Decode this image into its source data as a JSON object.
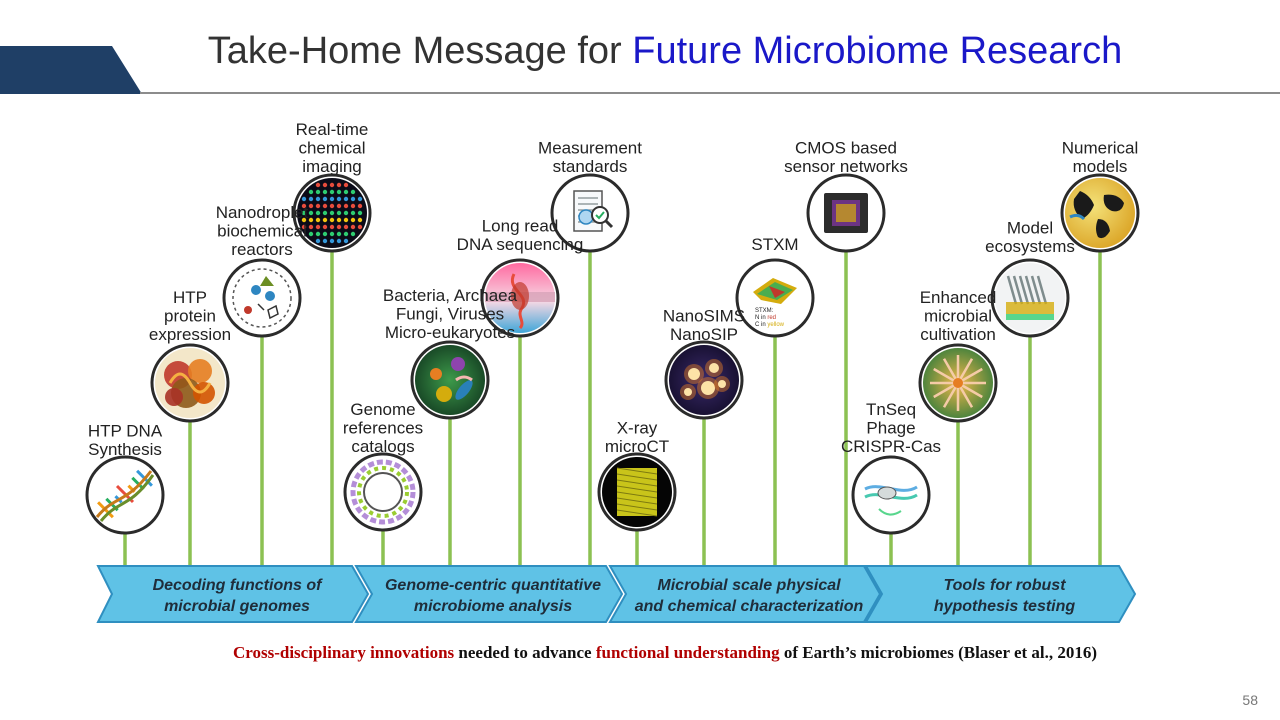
{
  "slide": {
    "title_part1": "Take-Home Message for ",
    "title_part2": "Future Microbiome Research",
    "page_number": "58"
  },
  "caption": {
    "part1": "Cross-disciplinary  innovations",
    "part2": " needed to advance ",
    "part3": "functional  understanding",
    "part4": "  of Earth’s microbiomes  (Blaser et al., 2016)"
  },
  "stages": [
    {
      "line1": "Decoding functions of",
      "line2": "microbial genomes"
    },
    {
      "line1": "Genome-centric quantitative",
      "line2": "microbiome analysis"
    },
    {
      "line1": "Microbial scale physical",
      "line2": "and chemical characterization"
    },
    {
      "line1": "Tools for robust",
      "line2": "hypothesis testing"
    }
  ],
  "innovations": [
    {
      "name": "htp-dna-synthesis",
      "icon": "dna-helix-icon",
      "label": [
        "HTP DNA",
        "Synthesis"
      ]
    },
    {
      "name": "htp-protein-expression",
      "icon": "protein-structure-icon",
      "label": [
        "HTP",
        "protein",
        "expression"
      ]
    },
    {
      "name": "nanodroplet-reactors",
      "icon": "nanodroplet-icon",
      "label": [
        "Nanodroplet",
        "biochemical",
        "reactors"
      ]
    },
    {
      "name": "chemical-imaging",
      "icon": "chemical-imaging-icon",
      "label": [
        "Real-time",
        "chemical",
        "imaging"
      ]
    },
    {
      "name": "genome-references",
      "icon": "genome-ring-icon",
      "label": [
        "Genome",
        "references",
        "catalogs"
      ]
    },
    {
      "name": "bacteria-archaea",
      "icon": "microbes-icon",
      "label": [
        "Bacteria, Archaea",
        "Fungi, Viruses",
        "Micro-eukaryotes"
      ]
    },
    {
      "name": "long-read-sequencing",
      "icon": "membrane-pore-icon",
      "label": [
        "Long read",
        "DNA sequencing"
      ]
    },
    {
      "name": "measurement-standards",
      "icon": "document-magnifier-icon",
      "label": [
        "Measurement",
        "standards"
      ]
    },
    {
      "name": "xray-microct",
      "icon": "microct-volume-icon",
      "label": [
        "X-ray",
        "microCT"
      ]
    },
    {
      "name": "nanosims",
      "icon": "nanosims-map-icon",
      "label": [
        "NanoSIMS",
        "NanoSIP"
      ]
    },
    {
      "name": "stxm",
      "icon": "stxm-map-icon",
      "label": [
        "STXM"
      ],
      "icon_text": [
        "STXM:",
        "N in ",
        "red",
        "C in ",
        "yellow"
      ]
    },
    {
      "name": "cmos-sensors",
      "icon": "cmos-chip-icon",
      "label": [
        "CMOS based",
        "sensor networks"
      ]
    },
    {
      "name": "tnseq-crispr",
      "icon": "crispr-icon",
      "label": [
        "TnSeq",
        "Phage",
        "CRISPR-Cas"
      ]
    },
    {
      "name": "microbial-cultivation",
      "icon": "cultivation-icon",
      "label": [
        "Enhanced",
        "microbial",
        "cultivation"
      ]
    },
    {
      "name": "model-ecosystems",
      "icon": "ecosystem-device-icon",
      "label": [
        "Model",
        "ecosystems"
      ]
    },
    {
      "name": "numerical-models",
      "icon": "globe-icon",
      "label": [
        "Numerical",
        "models"
      ]
    }
  ],
  "colors": {
    "band_fill": "#5fc2e6",
    "band_edge": "#2f8fc0",
    "stem": "#8cc152",
    "circle_border": "#2b2b2b",
    "title_accent": "#1a18c8",
    "caption_red": "#b00000",
    "corner_tab": "#1f3f66"
  }
}
